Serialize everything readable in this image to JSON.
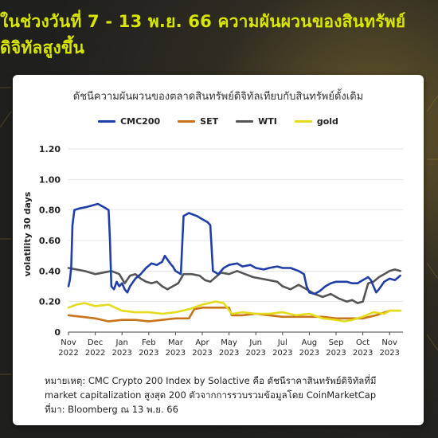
{
  "title": "ในช่วงวันที่ 7 - 13 พ.ย. 66 ความผันผวนของสินทรัพย์ดิจิทัลสูงขึ้น",
  "note": {
    "line1": "หมายเหตุ: CMC Crypto 200 Index by Solactive คือ ดัชนีราคาสินทรัพย์ดิจิทัลที่มี",
    "line2": "market capitalization สูงสุด 200 ตัวจากการรวบรวมข้อมูลโดย CoinMarketCap",
    "line3": "ที่มา: Bloomberg ณ 13 พ.ย. 66"
  },
  "colors": {
    "title": "#d8e600",
    "cmc200": "#1f3fa6",
    "set": "#c8741a",
    "wti": "#555555",
    "gold": "#e3dc1c"
  },
  "chart_data": {
    "type": "line",
    "title": "ดัชนีความผันผวนของตลาดสินทรัพย์ดิจิทัลเทียบกับสินทรัพย์ดั้งเดิม",
    "ylabel": "volatility 30 days",
    "xlabel": "",
    "ylim": [
      0,
      1.2
    ],
    "yticks": [
      "0",
      "0.20",
      "0.40",
      "0.60",
      "0.80",
      "1.00",
      "1.20"
    ],
    "xticks": [
      {
        "m": "Nov",
        "y": "2022",
        "t": 0
      },
      {
        "m": "Dec",
        "y": "2022",
        "t": 1
      },
      {
        "m": "Jan",
        "y": "2023",
        "t": 2
      },
      {
        "m": "Feb",
        "y": "2023",
        "t": 3
      },
      {
        "m": "Mar",
        "y": "2023",
        "t": 4
      },
      {
        "m": "Apr",
        "y": "2023",
        "t": 5
      },
      {
        "m": "May",
        "y": "2023",
        "t": 6
      },
      {
        "m": "Jun",
        "y": "2023",
        "t": 7
      },
      {
        "m": "Jul",
        "y": "2023",
        "t": 8
      },
      {
        "m": "Aug",
        "y": "2023",
        "t": 9
      },
      {
        "m": "Sep",
        "y": "2023",
        "t": 10
      },
      {
        "m": "Oct",
        "y": "2023",
        "t": 11
      },
      {
        "m": "Nov",
        "y": "2023",
        "t": 12
      }
    ],
    "xlim": [
      0,
      12.5
    ],
    "grid": true,
    "legend_position": "top",
    "series": [
      {
        "name": "CMC200",
        "color": "#1f3fa6",
        "points": [
          [
            0,
            0.3
          ],
          [
            0.05,
            0.34
          ],
          [
            0.1,
            0.42
          ],
          [
            0.15,
            0.7
          ],
          [
            0.22,
            0.8
          ],
          [
            0.4,
            0.81
          ],
          [
            0.7,
            0.82
          ],
          [
            0.9,
            0.83
          ],
          [
            1.1,
            0.84
          ],
          [
            1.3,
            0.82
          ],
          [
            1.5,
            0.8
          ],
          [
            1.55,
            0.6
          ],
          [
            1.6,
            0.3
          ],
          [
            1.7,
            0.28
          ],
          [
            1.8,
            0.33
          ],
          [
            1.9,
            0.3
          ],
          [
            2.0,
            0.32
          ],
          [
            2.1,
            0.28
          ],
          [
            2.2,
            0.26
          ],
          [
            2.3,
            0.3
          ],
          [
            2.5,
            0.35
          ],
          [
            2.7,
            0.38
          ],
          [
            2.9,
            0.42
          ],
          [
            3.1,
            0.45
          ],
          [
            3.3,
            0.44
          ],
          [
            3.5,
            0.46
          ],
          [
            3.6,
            0.5
          ],
          [
            3.8,
            0.45
          ],
          [
            3.9,
            0.43
          ],
          [
            4.0,
            0.4
          ],
          [
            4.2,
            0.38
          ],
          [
            4.3,
            0.76
          ],
          [
            4.5,
            0.78
          ],
          [
            4.8,
            0.76
          ],
          [
            5.0,
            0.74
          ],
          [
            5.2,
            0.72
          ],
          [
            5.3,
            0.7
          ],
          [
            5.4,
            0.4
          ],
          [
            5.6,
            0.38
          ],
          [
            5.8,
            0.42
          ],
          [
            6.0,
            0.44
          ],
          [
            6.3,
            0.45
          ],
          [
            6.5,
            0.43
          ],
          [
            6.8,
            0.44
          ],
          [
            7.0,
            0.42
          ],
          [
            7.3,
            0.41
          ],
          [
            7.5,
            0.42
          ],
          [
            7.8,
            0.43
          ],
          [
            8.0,
            0.42
          ],
          [
            8.3,
            0.42
          ],
          [
            8.6,
            0.4
          ],
          [
            8.8,
            0.38
          ],
          [
            8.9,
            0.3
          ],
          [
            9.0,
            0.26
          ],
          [
            9.2,
            0.25
          ],
          [
            9.4,
            0.27
          ],
          [
            9.6,
            0.3
          ],
          [
            9.8,
            0.32
          ],
          [
            10.0,
            0.33
          ],
          [
            10.2,
            0.33
          ],
          [
            10.4,
            0.33
          ],
          [
            10.6,
            0.32
          ],
          [
            10.8,
            0.32
          ],
          [
            11.0,
            0.34
          ],
          [
            11.2,
            0.36
          ],
          [
            11.3,
            0.34
          ],
          [
            11.4,
            0.3
          ],
          [
            11.5,
            0.26
          ],
          [
            11.6,
            0.28
          ],
          [
            11.8,
            0.33
          ],
          [
            12.0,
            0.35
          ],
          [
            12.2,
            0.34
          ],
          [
            12.4,
            0.37
          ]
        ]
      },
      {
        "name": "SET",
        "color": "#c8741a",
        "points": [
          [
            0,
            0.11
          ],
          [
            0.5,
            0.1
          ],
          [
            1.0,
            0.09
          ],
          [
            1.5,
            0.07
          ],
          [
            2.0,
            0.08
          ],
          [
            2.5,
            0.08
          ],
          [
            3.0,
            0.07
          ],
          [
            3.5,
            0.08
          ],
          [
            4.0,
            0.09
          ],
          [
            4.5,
            0.09
          ],
          [
            4.7,
            0.15
          ],
          [
            5.0,
            0.16
          ],
          [
            5.5,
            0.16
          ],
          [
            6.0,
            0.16
          ],
          [
            6.1,
            0.11
          ],
          [
            6.5,
            0.11
          ],
          [
            7.0,
            0.12
          ],
          [
            7.5,
            0.11
          ],
          [
            8.0,
            0.1
          ],
          [
            8.5,
            0.1
          ],
          [
            9.0,
            0.1
          ],
          [
            9.5,
            0.1
          ],
          [
            10.0,
            0.09
          ],
          [
            10.5,
            0.09
          ],
          [
            11.0,
            0.09
          ],
          [
            11.5,
            0.11
          ],
          [
            12.0,
            0.14
          ],
          [
            12.4,
            0.14
          ]
        ]
      },
      {
        "name": "WTI",
        "color": "#555555",
        "points": [
          [
            0,
            0.42
          ],
          [
            0.3,
            0.41
          ],
          [
            0.6,
            0.4
          ],
          [
            1.0,
            0.38
          ],
          [
            1.3,
            0.39
          ],
          [
            1.6,
            0.4
          ],
          [
            1.9,
            0.38
          ],
          [
            2.1,
            0.32
          ],
          [
            2.3,
            0.37
          ],
          [
            2.5,
            0.38
          ],
          [
            2.7,
            0.35
          ],
          [
            2.9,
            0.33
          ],
          [
            3.1,
            0.32
          ],
          [
            3.3,
            0.33
          ],
          [
            3.5,
            0.3
          ],
          [
            3.7,
            0.28
          ],
          [
            3.9,
            0.3
          ],
          [
            4.1,
            0.32
          ],
          [
            4.3,
            0.38
          ],
          [
            4.6,
            0.38
          ],
          [
            4.9,
            0.37
          ],
          [
            5.1,
            0.34
          ],
          [
            5.3,
            0.33
          ],
          [
            5.5,
            0.36
          ],
          [
            5.7,
            0.39
          ],
          [
            6.0,
            0.38
          ],
          [
            6.3,
            0.4
          ],
          [
            6.6,
            0.38
          ],
          [
            6.9,
            0.36
          ],
          [
            7.2,
            0.35
          ],
          [
            7.5,
            0.34
          ],
          [
            7.8,
            0.33
          ],
          [
            8.0,
            0.3
          ],
          [
            8.3,
            0.28
          ],
          [
            8.6,
            0.31
          ],
          [
            8.9,
            0.28
          ],
          [
            9.2,
            0.25
          ],
          [
            9.5,
            0.23
          ],
          [
            9.8,
            0.25
          ],
          [
            10.1,
            0.22
          ],
          [
            10.4,
            0.2
          ],
          [
            10.6,
            0.21
          ],
          [
            10.8,
            0.19
          ],
          [
            11.0,
            0.2
          ],
          [
            11.2,
            0.32
          ],
          [
            11.4,
            0.33
          ],
          [
            11.6,
            0.36
          ],
          [
            11.8,
            0.38
          ],
          [
            12.0,
            0.4
          ],
          [
            12.2,
            0.41
          ],
          [
            12.4,
            0.4
          ]
        ]
      },
      {
        "name": "gold",
        "color": "#e3dc1c",
        "points": [
          [
            0,
            0.16
          ],
          [
            0.3,
            0.18
          ],
          [
            0.6,
            0.19
          ],
          [
            1.0,
            0.17
          ],
          [
            1.5,
            0.18
          ],
          [
            2.0,
            0.14
          ],
          [
            2.5,
            0.13
          ],
          [
            3.0,
            0.13
          ],
          [
            3.5,
            0.12
          ],
          [
            4.0,
            0.13
          ],
          [
            4.5,
            0.15
          ],
          [
            5.0,
            0.18
          ],
          [
            5.5,
            0.2
          ],
          [
            5.8,
            0.19
          ],
          [
            6.1,
            0.12
          ],
          [
            6.5,
            0.13
          ],
          [
            7.0,
            0.12
          ],
          [
            7.5,
            0.12
          ],
          [
            8.0,
            0.13
          ],
          [
            8.5,
            0.11
          ],
          [
            9.0,
            0.12
          ],
          [
            9.5,
            0.09
          ],
          [
            10.0,
            0.08
          ],
          [
            10.3,
            0.07
          ],
          [
            10.6,
            0.08
          ],
          [
            11.0,
            0.1
          ],
          [
            11.4,
            0.13
          ],
          [
            11.8,
            0.12
          ],
          [
            12.0,
            0.14
          ],
          [
            12.4,
            0.14
          ]
        ]
      }
    ]
  }
}
